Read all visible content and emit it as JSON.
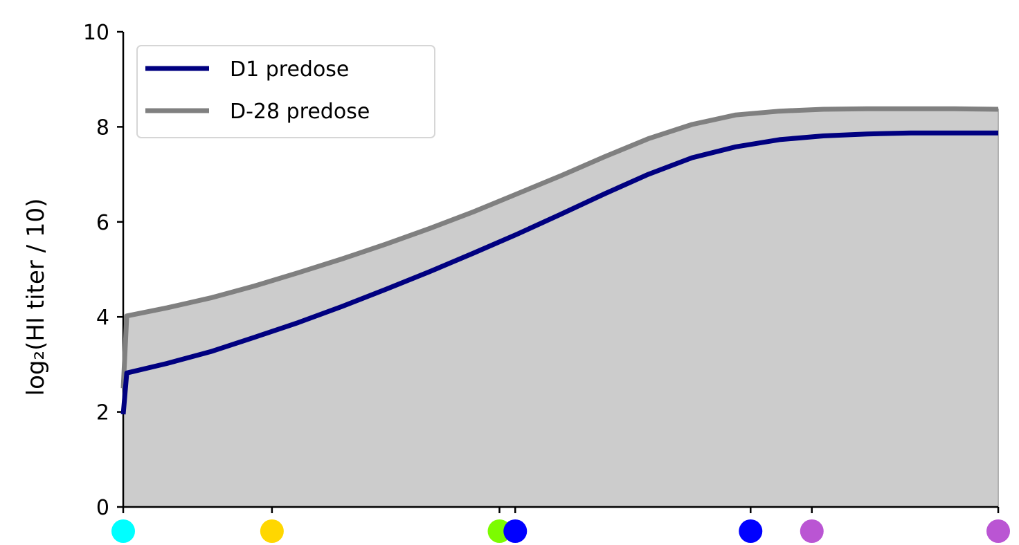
{
  "chart_data": {
    "type": "line",
    "ylabel": "log₂(HI titer / 10)",
    "xlabel": "",
    "ylim": [
      0,
      10
    ],
    "yticks": [
      0,
      2,
      4,
      6,
      8,
      10
    ],
    "xlim": [
      0,
      1
    ],
    "x": [
      0,
      0.004,
      0.05,
      0.1,
      0.15,
      0.2,
      0.25,
      0.3,
      0.35,
      0.4,
      0.45,
      0.5,
      0.55,
      0.6,
      0.65,
      0.7,
      0.75,
      0.8,
      0.85,
      0.9,
      0.95,
      1.0
    ],
    "series": [
      {
        "name": "D1 predose",
        "color": "#000080",
        "values": [
          1.95,
          2.82,
          3.02,
          3.27,
          3.57,
          3.88,
          4.22,
          4.58,
          4.95,
          5.34,
          5.74,
          6.16,
          6.59,
          7.0,
          7.35,
          7.58,
          7.73,
          7.81,
          7.85,
          7.87,
          7.87,
          7.87
        ]
      },
      {
        "name": "D-28 predose",
        "color": "#808080",
        "values": [
          2.5,
          4.02,
          4.19,
          4.4,
          4.65,
          4.93,
          5.22,
          5.53,
          5.86,
          6.21,
          6.59,
          6.97,
          7.37,
          7.75,
          8.05,
          8.25,
          8.33,
          8.37,
          8.38,
          8.38,
          8.38,
          8.37
        ]
      }
    ],
    "fill_color": "#cccccc",
    "grid": false,
    "legend": "top-left",
    "x_markers": [
      {
        "x": 0.0,
        "color": "#00ffff"
      },
      {
        "x": 0.17,
        "color": "#ffd700"
      },
      {
        "x": 0.43,
        "color": "#7cfc00"
      },
      {
        "x": 0.448,
        "color": "#0000ff"
      },
      {
        "x": 0.717,
        "color": "#0000ff"
      },
      {
        "x": 0.787,
        "color": "#ba55d3"
      },
      {
        "x": 1.0,
        "color": "#ba55d3"
      }
    ]
  }
}
